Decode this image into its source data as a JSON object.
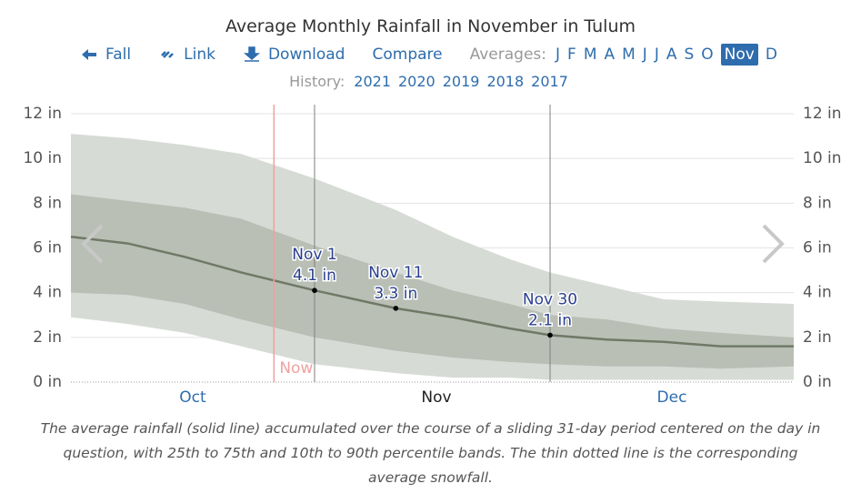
{
  "header": {
    "title": "Average Monthly Rainfall in November in Tulum",
    "nav": {
      "back": "Fall",
      "link": "Link",
      "download": "Download",
      "compare": "Compare",
      "averages_label": "Averages:",
      "months": [
        "J",
        "F",
        "M",
        "A",
        "M",
        "J",
        "J",
        "A",
        "S",
        "O",
        "Nov",
        "D"
      ],
      "active_month": 10,
      "history_label": "History:",
      "years": [
        "2021",
        "2020",
        "2019",
        "2018",
        "2017"
      ]
    }
  },
  "chart_data": {
    "type": "band-line",
    "x": [
      275,
      282,
      289,
      296,
      305,
      315,
      322,
      329,
      334,
      341,
      348,
      355,
      364
    ],
    "median": [
      6.5,
      6.2,
      5.6,
      4.9,
      4.1,
      3.3,
      2.9,
      2.4,
      2.1,
      1.9,
      1.8,
      1.6,
      1.6
    ],
    "p25": [
      4.0,
      3.9,
      3.5,
      2.8,
      2.0,
      1.4,
      1.1,
      0.9,
      0.8,
      0.7,
      0.7,
      0.6,
      0.7
    ],
    "p75": [
      8.4,
      8.1,
      7.8,
      7.3,
      6.1,
      4.9,
      4.1,
      3.5,
      3.0,
      2.8,
      2.4,
      2.2,
      2.0
    ],
    "p10": [
      2.9,
      2.6,
      2.2,
      1.6,
      0.8,
      0.4,
      0.2,
      0.2,
      0.1,
      0.1,
      0.1,
      0.1,
      0.1
    ],
    "p90": [
      11.1,
      10.9,
      10.6,
      10.2,
      9.1,
      7.7,
      6.5,
      5.5,
      4.9,
      4.3,
      3.7,
      3.6,
      3.5
    ],
    "snowfall": [
      0,
      0,
      0,
      0,
      0,
      0,
      0,
      0,
      0,
      0,
      0,
      0,
      0
    ],
    "colors": {
      "outer": "#d7dbd5",
      "inner": "#b9bfb5",
      "line": "#6f7966",
      "snow": "#999999",
      "now": "#f0a0a0",
      "marker": "#808080"
    },
    "xlim": [
      275,
      364
    ],
    "xticks": [
      {
        "value": 290,
        "label": "Oct"
      },
      {
        "value": 320,
        "label": "Nov"
      },
      {
        "value": 349,
        "label": "Dec"
      }
    ],
    "active_xtick": 1,
    "ylim": [
      0,
      12
    ],
    "yticks": [
      {
        "value": 0,
        "label": "0 in"
      },
      {
        "value": 2,
        "label": "2 in"
      },
      {
        "value": 4,
        "label": "4 in"
      },
      {
        "value": 6,
        "label": "6 in"
      },
      {
        "value": 8,
        "label": "8 in"
      },
      {
        "value": 10,
        "label": "10 in"
      },
      {
        "value": 12,
        "label": "12 in"
      }
    ],
    "grid": true,
    "now": {
      "x": 300,
      "label": "Now"
    },
    "annotations": [
      {
        "x": 305,
        "value": 4.1,
        "date": "Nov 1",
        "value_label": "4.1 in",
        "line": true
      },
      {
        "x": 315,
        "value": 3.3,
        "date": "Nov 11",
        "value_label": "3.3 in",
        "line": false
      },
      {
        "x": 334,
        "value": 2.1,
        "date": "Nov 30",
        "value_label": "2.1 in",
        "line": true
      }
    ]
  },
  "caption": "The average rainfall (solid line) accumulated over the course of a sliding 31-day period centered on the day in question, with 25th to 75th and 10th to 90th percentile bands. The thin dotted line is the corresponding average snowfall."
}
